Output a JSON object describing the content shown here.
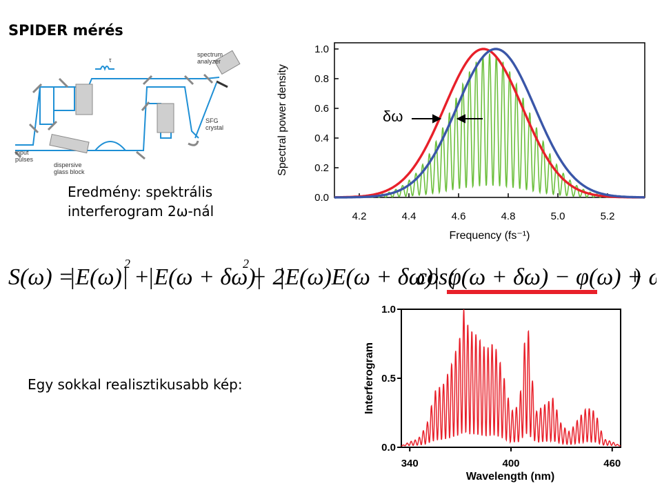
{
  "slide": {
    "title": "SPIDER mérés",
    "result_line1": "Eredmény: spektrális",
    "result_line2": "interferogram 2ω-nál",
    "realistic_caption": "Egy sokkal realisztikusabb kép:"
  },
  "setup_diagram": {
    "labels": {
      "tau": "τ",
      "spectrum_analyzer_1": "spectrum",
      "spectrum_analyzer_2": "analyzer",
      "sfg_1": "SFG",
      "sfg_2": "crystal",
      "input_1": "input",
      "input_2": "pulses",
      "glass_1": "dispersive",
      "glass_2": "glass block"
    }
  },
  "formula": {
    "lhs": "S(ω) =",
    "term1": "|E(ω)|",
    "exp1": "2",
    "plus1": "+",
    "term2": "|E(ω + δω)|",
    "exp2": "2",
    "plus2": "+ 2",
    "term3": "|E(ω)E(ω + δω)|",
    "cos_open": "cos(",
    "phase": "φ(ω + δω) − φ(ω) + ωτ",
    "cos_close": ")",
    "highlight_color": "#e8202a"
  },
  "chart_data": [
    {
      "type": "line",
      "title": "",
      "xlabel": "Frequency (fs⁻¹)",
      "ylabel": "Spectral power density",
      "xlim": [
        4.1,
        5.35
      ],
      "ylim": [
        0,
        1.0
      ],
      "xticks": [
        "4.2",
        "4.4",
        "4.6",
        "4.8",
        "5.0",
        "5.2"
      ],
      "yticks": [
        "0.0",
        "0.2",
        "0.4",
        "0.6",
        "0.8",
        "1.0"
      ],
      "annotation": "δω",
      "series": [
        {
          "color": "#e8202a",
          "shape": "gaussian",
          "center": 4.7,
          "fwhm": 0.37,
          "peak": 1.0
        },
        {
          "color": "#3a56a8",
          "shape": "gaussian",
          "center": 4.75,
          "fwhm": 0.37,
          "peak": 1.0
        },
        {
          "color": "#6cbf3c",
          "shape": "fringes",
          "center": 4.725,
          "fwhm": 0.37,
          "peak": 0.97,
          "fringe_period": 0.027
        }
      ]
    },
    {
      "type": "line",
      "title": "",
      "xlabel": "Wavelength (nm)",
      "ylabel": "Interferogram",
      "xlim": [
        335,
        465
      ],
      "ylim": [
        0,
        1.0
      ],
      "xticks": [
        "340",
        "400",
        "460"
      ],
      "yticks": [
        "0.0",
        "0.5",
        "1.0"
      ],
      "series": [
        {
          "color": "#e8202a",
          "envelope": [
            [
              335,
              0.0
            ],
            [
              340,
              0.03
            ],
            [
              345,
              0.05
            ],
            [
              350,
              0.15
            ],
            [
              355,
              0.4
            ],
            [
              360,
              0.45
            ],
            [
              365,
              0.6
            ],
            [
              370,
              0.8
            ],
            [
              372,
              1.0
            ],
            [
              375,
              0.85
            ],
            [
              380,
              0.8
            ],
            [
              385,
              0.7
            ],
            [
              390,
              0.75
            ],
            [
              395,
              0.55
            ],
            [
              400,
              0.25
            ],
            [
              405,
              0.3
            ],
            [
              408,
              0.75
            ],
            [
              410,
              0.9
            ],
            [
              412,
              0.55
            ],
            [
              415,
              0.25
            ],
            [
              420,
              0.3
            ],
            [
              425,
              0.35
            ],
            [
              430,
              0.15
            ],
            [
              435,
              0.1
            ],
            [
              440,
              0.2
            ],
            [
              445,
              0.28
            ],
            [
              450,
              0.25
            ],
            [
              455,
              0.05
            ],
            [
              460,
              0.03
            ],
            [
              465,
              0.0
            ]
          ],
          "fringe_period": 2.4
        }
      ]
    }
  ]
}
